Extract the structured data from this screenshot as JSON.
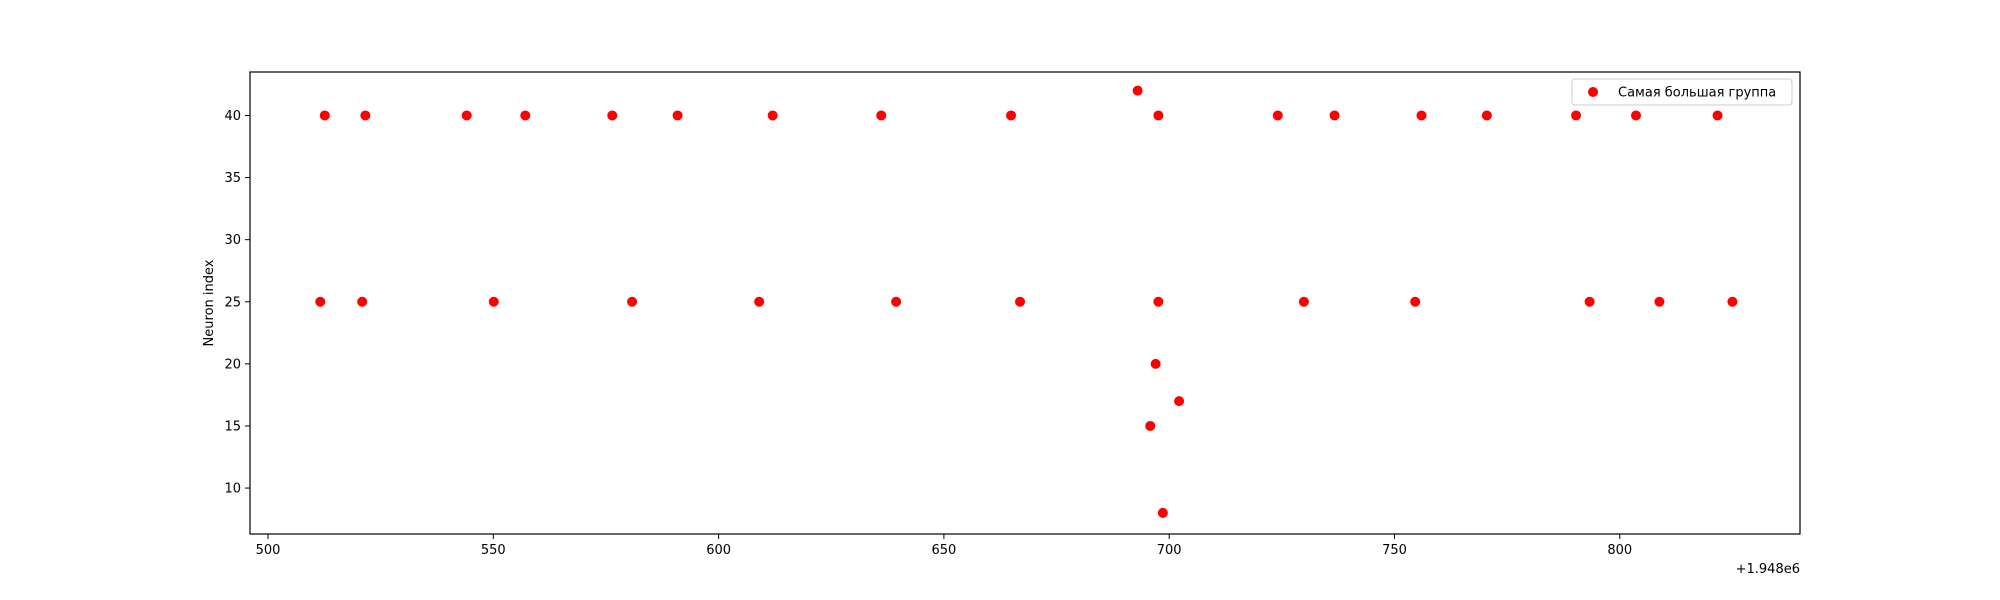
{
  "chart_data": {
    "type": "scatter",
    "title": "",
    "xlabel": "",
    "ylabel": "Neuron index",
    "x_offset_label": "+1.948e6",
    "x_offset": 1948000,
    "xlim": [
      496,
      840
    ],
    "ylim": [
      6.3,
      43.5
    ],
    "x_ticks": [
      500,
      550,
      600,
      650,
      700,
      750,
      800
    ],
    "y_ticks": [
      10,
      15,
      20,
      25,
      30,
      35,
      40
    ],
    "grid": false,
    "legend_position": "top-right",
    "series": [
      {
        "name": "Самая большая группа",
        "color": "#ff0000",
        "marker": "circle",
        "points": [
          {
            "x": 1948512.6,
            "y": 40
          },
          {
            "x": 1948521.6,
            "y": 40
          },
          {
            "x": 1948544.1,
            "y": 40
          },
          {
            "x": 1948557.1,
            "y": 40
          },
          {
            "x": 1948576.4,
            "y": 40
          },
          {
            "x": 1948590.9,
            "y": 40
          },
          {
            "x": 1948612.0,
            "y": 40
          },
          {
            "x": 1948636.1,
            "y": 40
          },
          {
            "x": 1948664.9,
            "y": 40
          },
          {
            "x": 1948697.6,
            "y": 40
          },
          {
            "x": 1948724.1,
            "y": 40
          },
          {
            "x": 1948736.7,
            "y": 40
          },
          {
            "x": 1948756.0,
            "y": 40
          },
          {
            "x": 1948770.5,
            "y": 40
          },
          {
            "x": 1948790.3,
            "y": 40
          },
          {
            "x": 1948803.6,
            "y": 40
          },
          {
            "x": 1948821.7,
            "y": 40
          },
          {
            "x": 1948693.0,
            "y": 42
          },
          {
            "x": 1948511.6,
            "y": 25
          },
          {
            "x": 1948520.9,
            "y": 25
          },
          {
            "x": 1948550.1,
            "y": 25
          },
          {
            "x": 1948580.8,
            "y": 25
          },
          {
            "x": 1948609.0,
            "y": 25
          },
          {
            "x": 1948639.4,
            "y": 25
          },
          {
            "x": 1948666.9,
            "y": 25
          },
          {
            "x": 1948697.6,
            "y": 25
          },
          {
            "x": 1948729.9,
            "y": 25
          },
          {
            "x": 1948754.6,
            "y": 25
          },
          {
            "x": 1948793.3,
            "y": 25
          },
          {
            "x": 1948808.8,
            "y": 25
          },
          {
            "x": 1948825.0,
            "y": 25
          },
          {
            "x": 1948697.0,
            "y": 20
          },
          {
            "x": 1948702.2,
            "y": 17
          },
          {
            "x": 1948695.8,
            "y": 15
          },
          {
            "x": 1948698.6,
            "y": 8
          }
        ]
      }
    ]
  }
}
